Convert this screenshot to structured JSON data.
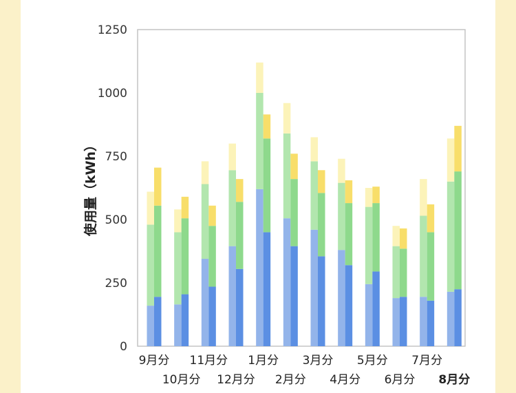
{
  "chart_data": {
    "type": "bar",
    "subtype": "stacked-grouped",
    "ylabel": "使用量（kWh）",
    "ylim": [
      0,
      1250
    ],
    "yticks": [
      0,
      250,
      500,
      750,
      1000,
      1250
    ],
    "grid": false,
    "legend": "none",
    "categories": [
      "9月分",
      "10月分",
      "11月分",
      "12月分",
      "1月分",
      "2月分",
      "3月分",
      "4月分",
      "5月分",
      "6月分",
      "7月分",
      "8月分"
    ],
    "highlighted_category": "8月分",
    "groups": [
      {
        "bar": "previous-year",
        "segments": [
          {
            "color": "#93b4ea",
            "values": [
              160,
              165,
              345,
              395,
              620,
              505,
              460,
              380,
              245,
              190,
              195,
              215
            ]
          },
          {
            "color": "#b2e6ae",
            "values": [
              320,
              285,
              295,
              300,
              380,
              335,
              270,
              265,
              305,
              205,
              320,
              435
            ]
          },
          {
            "color": "#fcf3b9",
            "values": [
              130,
              90,
              90,
              105,
              120,
              120,
              95,
              95,
              75,
              80,
              145,
              170
            ]
          }
        ]
      },
      {
        "bar": "current-year",
        "segments": [
          {
            "color": "#5b8fe3",
            "values": [
              195,
              205,
              235,
              305,
              450,
              395,
              355,
              320,
              295,
              195,
              180,
              225
            ]
          },
          {
            "color": "#8ed98c",
            "values": [
              360,
              300,
              240,
              265,
              370,
              265,
              250,
              245,
              270,
              190,
              270,
              465
            ]
          },
          {
            "color": "#f8de6a",
            "values": [
              150,
              85,
              80,
              90,
              95,
              100,
              90,
              90,
              65,
              80,
              110,
              180
            ]
          }
        ]
      }
    ]
  }
}
